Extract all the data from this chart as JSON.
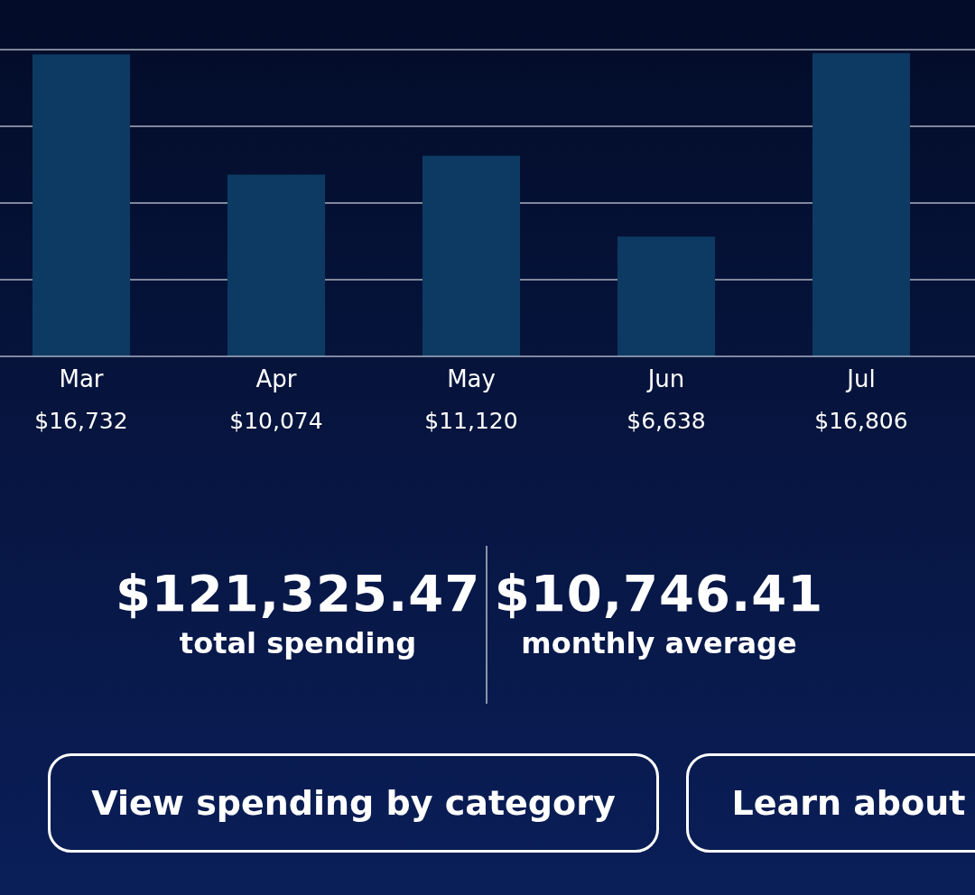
{
  "chart_data": {
    "type": "bar",
    "categories": [
      "Mar",
      "Apr",
      "May",
      "Jun",
      "Jul"
    ],
    "values": [
      16732,
      10074,
      11120,
      6638,
      16806
    ],
    "value_labels": [
      "$16,732",
      "$10,074",
      "$11,120",
      "$6,638",
      "$16,806"
    ],
    "color": "#0d3a63",
    "ylim": [
      0,
      17000
    ],
    "yticks": [
      {
        "value": 4250,
        "label": null
      },
      {
        "value": 8500,
        "label": null
      },
      {
        "value": 12750,
        "label": null
      },
      {
        "value": 17000,
        "label": null
      }
    ],
    "grid": "y",
    "tick_labels": "x",
    "annotations": [
      "$121,325.47",
      "total spending",
      "$10,746.41",
      "monthly average",
      "View spending by category",
      "Learn about"
    ]
  }
}
